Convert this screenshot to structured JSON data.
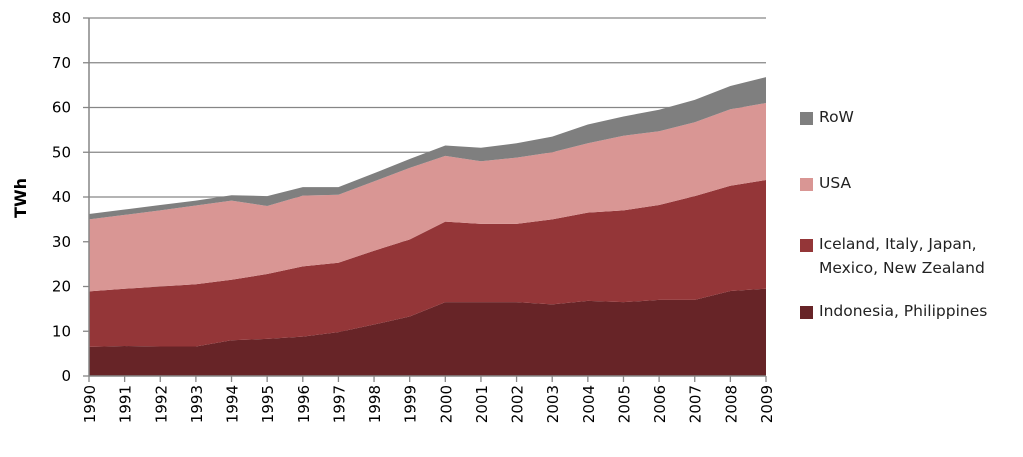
{
  "chart_data": {
    "type": "area",
    "stacked": true,
    "ylabel": "TWh",
    "xlabel": "",
    "title": "",
    "ylim": [
      0,
      80
    ],
    "yticks": [
      0,
      10,
      20,
      30,
      40,
      50,
      60,
      70,
      80
    ],
    "grid": "horizontal",
    "legend_position": "right",
    "x": [
      "1990",
      "1991",
      "1992",
      "1993",
      "1994",
      "1995",
      "1996",
      "1997",
      "1998",
      "1999",
      "2000",
      "2001",
      "2002",
      "2003",
      "2004",
      "2005",
      "2006",
      "2007",
      "2008",
      "2009"
    ],
    "series": [
      {
        "name": "Indonesia, Philippines",
        "color": "#672427",
        "values": [
          6.5,
          6.7,
          6.6,
          6.6,
          8.0,
          8.3,
          8.8,
          9.8,
          11.5,
          13.3,
          16.5,
          16.5,
          16.5,
          16.0,
          16.8,
          16.5,
          17.0,
          17.0,
          19.0,
          19.5
        ]
      },
      {
        "name": "Iceland, Italy,  Japan, Mexico, New Zealand",
        "color": "#943638",
        "values": [
          12.4,
          12.8,
          13.4,
          13.9,
          13.5,
          14.5,
          15.7,
          15.5,
          16.5,
          17.2,
          18.0,
          17.5,
          17.5,
          19.0,
          19.7,
          20.5,
          21.2,
          23.2,
          23.5,
          24.3
        ]
      },
      {
        "name": "USA",
        "color": "#d99694",
        "values": [
          16.1,
          16.5,
          17.0,
          17.6,
          17.7,
          15.2,
          15.8,
          15.2,
          15.5,
          16.0,
          14.7,
          14.0,
          14.8,
          15.0,
          15.5,
          16.7,
          16.5,
          16.5,
          17.1,
          17.2
        ]
      },
      {
        "name": "RoW",
        "color": "#7f7f7f",
        "values": [
          1.2,
          1.2,
          1.2,
          1.1,
          1.2,
          2.2,
          1.9,
          1.7,
          1.8,
          2.0,
          2.3,
          3.0,
          3.2,
          3.5,
          4.2,
          4.3,
          4.8,
          5.0,
          5.2,
          5.8
        ]
      }
    ],
    "legend_order": [
      "RoW",
      "USA",
      "Iceland, Italy,  Japan, Mexico, New Zealand",
      "Indonesia, Philippines"
    ],
    "legend_text": {
      "RoW": [
        "RoW"
      ],
      "USA": [
        "USA"
      ],
      "Iceland, Italy,  Japan, Mexico, New Zealand": [
        "Iceland, Italy,  Japan,",
        "Mexico, New Zealand"
      ],
      "Indonesia, Philippines": [
        "Indonesia, Philippines"
      ]
    }
  }
}
